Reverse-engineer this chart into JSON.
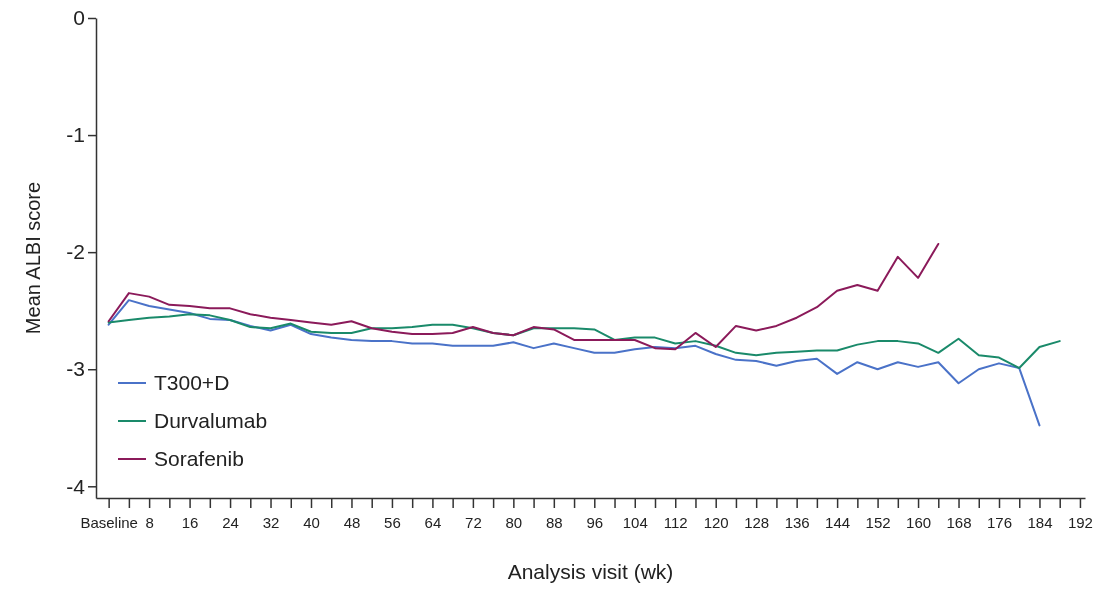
{
  "chart_data": {
    "type": "line",
    "xlabel": "Analysis visit (wk)",
    "ylabel": "Mean ALBI score",
    "xlim": [
      -2.5,
      193
    ],
    "ylim": [
      -4.1,
      0
    ],
    "xticks": [
      {
        "value": 0,
        "label": "Baseline"
      },
      {
        "value": 4,
        "label": null
      },
      8,
      {
        "value": 12,
        "label": null
      },
      16,
      {
        "value": 20,
        "label": null
      },
      24,
      {
        "value": 28,
        "label": null
      },
      32,
      {
        "value": 36,
        "label": null
      },
      40,
      {
        "value": 44,
        "label": null
      },
      48,
      {
        "value": 52,
        "label": null
      },
      56,
      {
        "value": 60,
        "label": null
      },
      64,
      {
        "value": 68,
        "label": null
      },
      72,
      {
        "value": 76,
        "label": null
      },
      80,
      {
        "value": 84,
        "label": null
      },
      88,
      {
        "value": 92,
        "label": null
      },
      96,
      {
        "value": 100,
        "label": null
      },
      104,
      {
        "value": 108,
        "label": null
      },
      112,
      {
        "value": 116,
        "label": null
      },
      120,
      {
        "value": 124,
        "label": null
      },
      128,
      {
        "value": 132,
        "label": null
      },
      136,
      {
        "value": 140,
        "label": null
      },
      144,
      {
        "value": 148,
        "label": null
      },
      152,
      {
        "value": 156,
        "label": null
      },
      160,
      {
        "value": 164,
        "label": null
      },
      168,
      {
        "value": 172,
        "label": null
      },
      176,
      {
        "value": 180,
        "label": null
      },
      184,
      {
        "value": 188,
        "label": null
      },
      192
    ],
    "yticks": [
      -4,
      -3,
      -2,
      -1,
      0
    ],
    "grid": false,
    "legend": "bottom left",
    "marker": "none",
    "line_style": "solid",
    "series": [
      {
        "name": "T300+D",
        "color": "#4a72c8",
        "x": [
          0,
          4,
          8,
          12,
          16,
          20,
          24,
          28,
          32,
          36,
          40,
          44,
          48,
          52,
          56,
          60,
          64,
          68,
          72,
          76,
          80,
          84,
          88,
          92,
          96,
          100,
          104,
          108,
          112,
          116,
          120,
          124,
          128,
          132,
          136,
          140,
          144,
          148,
          152,
          156,
          160,
          164,
          168,
          172,
          176,
          180,
          184
        ],
        "values": [
          -2.62,
          -2.41,
          -2.46,
          -2.49,
          -2.52,
          -2.57,
          -2.58,
          -2.63,
          -2.67,
          -2.62,
          -2.7,
          -2.73,
          -2.75,
          -2.76,
          -2.76,
          -2.78,
          -2.78,
          -2.8,
          -2.8,
          -2.8,
          -2.77,
          -2.82,
          -2.78,
          -2.82,
          -2.86,
          -2.86,
          -2.83,
          -2.81,
          -2.82,
          -2.8,
          -2.87,
          -2.92,
          -2.93,
          -2.97,
          -2.93,
          -2.91,
          -3.04,
          -2.94,
          -3.0,
          -2.94,
          -2.98,
          -2.94,
          -3.12,
          -3.0,
          -2.95,
          -2.99,
          -3.48
        ]
      },
      {
        "name": "Durvalumab",
        "color": "#1a8a6a",
        "x": [
          0,
          4,
          8,
          12,
          16,
          20,
          24,
          28,
          32,
          36,
          40,
          44,
          48,
          52,
          56,
          60,
          64,
          68,
          72,
          76,
          80,
          84,
          88,
          92,
          96,
          100,
          104,
          108,
          112,
          116,
          120,
          124,
          128,
          132,
          136,
          140,
          144,
          148,
          152,
          156,
          160,
          164,
          168,
          172,
          176,
          180,
          184,
          188
        ],
        "values": [
          -2.6,
          -2.58,
          -2.56,
          -2.55,
          -2.53,
          -2.54,
          -2.58,
          -2.64,
          -2.65,
          -2.61,
          -2.68,
          -2.69,
          -2.69,
          -2.65,
          -2.65,
          -2.64,
          -2.62,
          -2.62,
          -2.65,
          -2.69,
          -2.71,
          -2.65,
          -2.65,
          -2.65,
          -2.66,
          -2.75,
          -2.73,
          -2.73,
          -2.78,
          -2.76,
          -2.8,
          -2.86,
          -2.88,
          -2.86,
          -2.85,
          -2.84,
          -2.84,
          -2.79,
          -2.76,
          -2.76,
          -2.78,
          -2.86,
          -2.74,
          -2.88,
          -2.9,
          -2.99,
          -2.81,
          -2.76
        ]
      },
      {
        "name": "Sorafenib",
        "color": "#8b1a5a",
        "x": [
          0,
          4,
          8,
          12,
          16,
          20,
          24,
          28,
          32,
          36,
          40,
          44,
          48,
          52,
          56,
          60,
          64,
          68,
          72,
          76,
          80,
          84,
          88,
          92,
          96,
          100,
          104,
          108,
          112,
          116,
          120,
          124,
          128,
          132,
          136,
          140,
          144,
          148,
          152,
          156,
          160,
          164
        ],
        "values": [
          -2.59,
          -2.35,
          -2.38,
          -2.45,
          -2.46,
          -2.48,
          -2.48,
          -2.53,
          -2.56,
          -2.58,
          -2.6,
          -2.62,
          -2.59,
          -2.65,
          -2.68,
          -2.7,
          -2.7,
          -2.69,
          -2.64,
          -2.69,
          -2.71,
          -2.64,
          -2.66,
          -2.75,
          -2.75,
          -2.75,
          -2.75,
          -2.82,
          -2.83,
          -2.69,
          -2.81,
          -2.63,
          -2.67,
          -2.63,
          -2.56,
          -2.47,
          -2.33,
          -2.28,
          -2.33,
          -2.04,
          -2.22,
          -1.93
        ]
      }
    ]
  }
}
